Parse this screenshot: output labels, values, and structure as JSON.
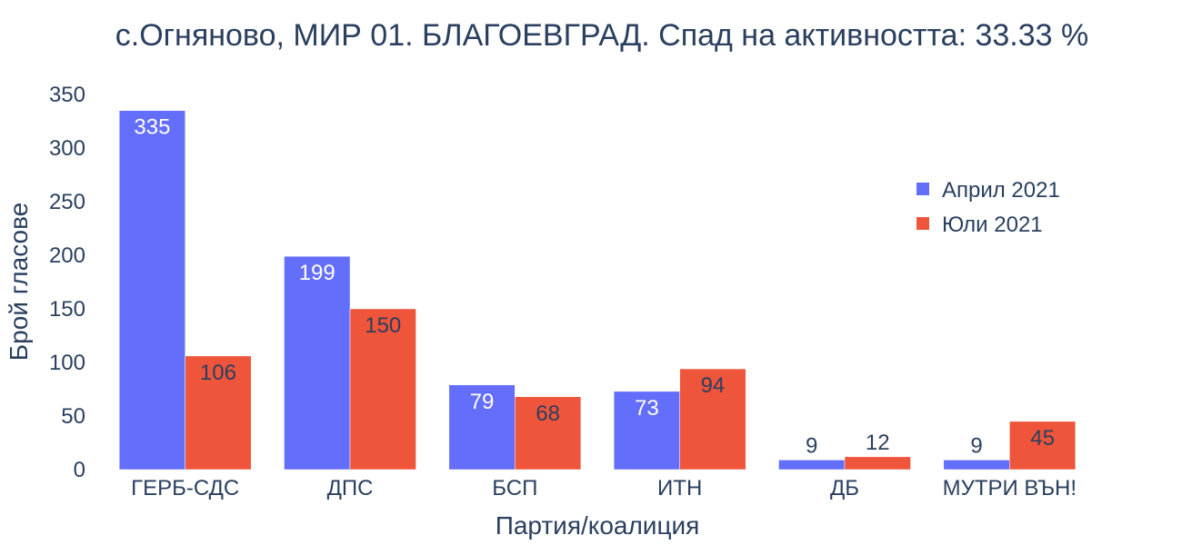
{
  "chart_data": {
    "type": "bar",
    "title": "с.Огняново, МИР 01. БЛАГОЕВГРАД. Спад на активността: 33.33 %",
    "xlabel": "Партия/коалиция",
    "ylabel": "Брой гласове",
    "categories": [
      "ГЕРБ-СДС",
      "ДПС",
      "БСП",
      "ИТН",
      "ДБ",
      "МУТРИ ВЪН!"
    ],
    "series": [
      {
        "name": "Април 2021",
        "color": "#636efa",
        "values": [
          335,
          199,
          79,
          73,
          9,
          9
        ]
      },
      {
        "name": "Юли 2021",
        "color": "#ef553b",
        "values": [
          106,
          150,
          68,
          94,
          12,
          45
        ]
      }
    ],
    "ylim": [
      0,
      350
    ],
    "yticks": [
      0,
      50,
      100,
      150,
      200,
      250,
      300,
      350
    ],
    "grid": false,
    "legend_position": "top-right",
    "data_labels": true
  }
}
